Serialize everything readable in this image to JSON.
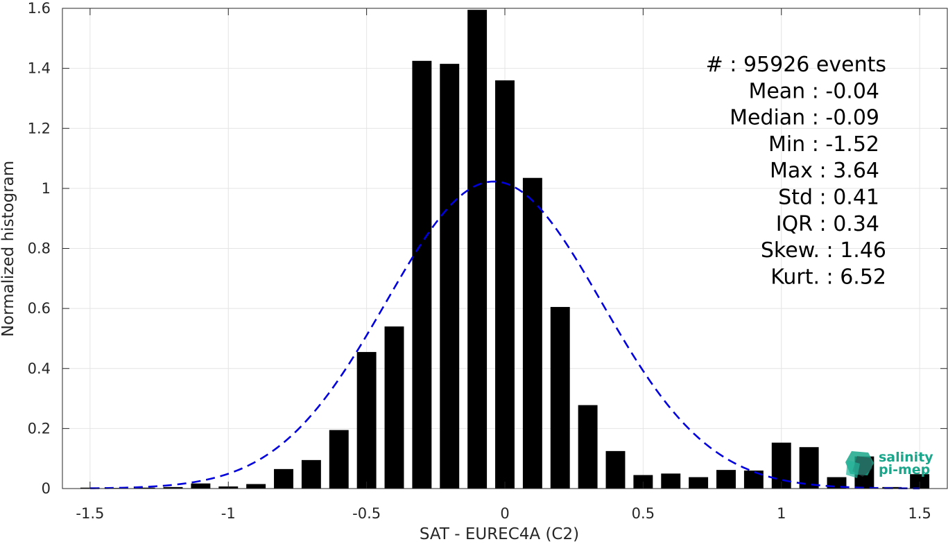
{
  "chart_data": {
    "type": "bar",
    "xlabel": "SAT - EUREC4A (C2)",
    "ylabel": "Normalized histogram",
    "xlim": [
      -1.6,
      1.6
    ],
    "ylim": [
      0,
      1.6
    ],
    "grid": true,
    "xticks": [
      -1.5,
      -1,
      -0.5,
      0,
      0.5,
      1,
      1.5
    ],
    "xtick_labels": [
      "-1.5",
      "-1",
      "-0.5",
      "0",
      "0.5",
      "1",
      "1.5"
    ],
    "yticks": [
      0,
      0.2,
      0.4,
      0.6,
      0.8,
      1,
      1.2,
      1.4,
      1.6
    ],
    "ytick_labels": [
      "0",
      "0.2",
      "0.4",
      "0.6",
      "0.8",
      "1",
      "1.2",
      "1.4",
      "1.6"
    ],
    "bar_width": 0.07,
    "bar_color": "#000000",
    "bins": [
      {
        "x": -1.5,
        "y": 0.003
      },
      {
        "x": -1.4,
        "y": 0.002
      },
      {
        "x": -1.3,
        "y": 0.003
      },
      {
        "x": -1.2,
        "y": 0.005
      },
      {
        "x": -1.1,
        "y": 0.017
      },
      {
        "x": -1.0,
        "y": 0.007
      },
      {
        "x": -0.9,
        "y": 0.015
      },
      {
        "x": -0.8,
        "y": 0.065
      },
      {
        "x": -0.7,
        "y": 0.095
      },
      {
        "x": -0.6,
        "y": 0.195
      },
      {
        "x": -0.5,
        "y": 0.455
      },
      {
        "x": -0.4,
        "y": 0.54
      },
      {
        "x": -0.3,
        "y": 1.425
      },
      {
        "x": -0.2,
        "y": 1.415
      },
      {
        "x": -0.1,
        "y": 1.595
      },
      {
        "x": 0.0,
        "y": 1.36
      },
      {
        "x": 0.1,
        "y": 1.035
      },
      {
        "x": 0.2,
        "y": 0.605
      },
      {
        "x": 0.3,
        "y": 0.278
      },
      {
        "x": 0.4,
        "y": 0.125
      },
      {
        "x": 0.5,
        "y": 0.045
      },
      {
        "x": 0.6,
        "y": 0.05
      },
      {
        "x": 0.7,
        "y": 0.038
      },
      {
        "x": 0.8,
        "y": 0.062
      },
      {
        "x": 0.9,
        "y": 0.06
      },
      {
        "x": 1.0,
        "y": 0.153
      },
      {
        "x": 1.1,
        "y": 0.138
      },
      {
        "x": 1.2,
        "y": 0.038
      },
      {
        "x": 1.3,
        "y": 0.107
      },
      {
        "x": 1.4,
        "y": 0.005
      },
      {
        "x": 1.5,
        "y": 0.048
      }
    ],
    "fit_curve": {
      "type": "gaussian",
      "style": "dashed",
      "color": "#0000dd",
      "mean": -0.04,
      "std": 0.39,
      "peak": 1.023,
      "x_range": [
        -1.5,
        1.5
      ]
    },
    "stats": [
      {
        "label": "#  : 95926 events"
      },
      {
        "label": "Mean : -0.04"
      },
      {
        "label": "Median : -0.09"
      },
      {
        "label": "Min : -1.52"
      },
      {
        "label": "Max : 3.64"
      },
      {
        "label": "Std : 0.41"
      },
      {
        "label": "IQR : 0.34"
      },
      {
        "label": "Skew. : 1.46"
      },
      {
        "label": "Kurt. : 6.52"
      }
    ]
  },
  "logo": {
    "line1": "salinity",
    "line2": "pi-mep",
    "color": "#1aa68a"
  }
}
